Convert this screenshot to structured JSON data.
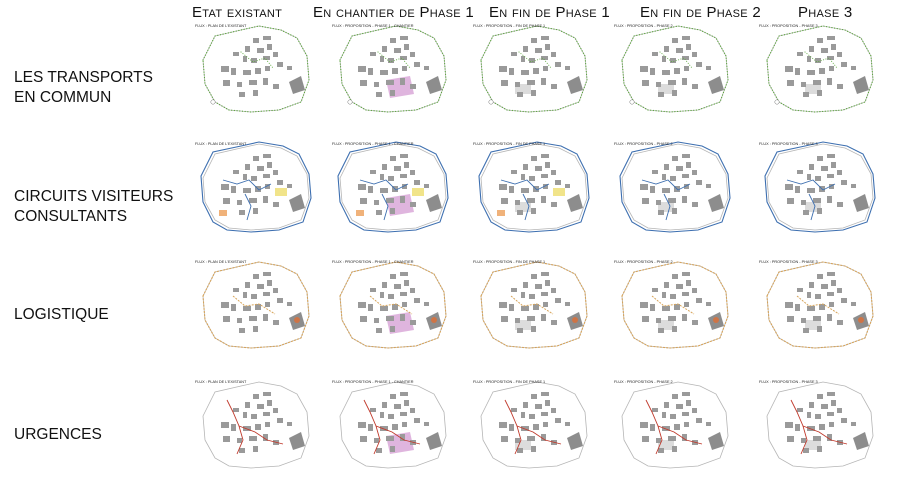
{
  "columns": [
    {
      "label": "Etat existant"
    },
    {
      "label": "En chantier de Phase 1"
    },
    {
      "label": "En fin de Phase 1"
    },
    {
      "label": "En fin de Phase 2"
    },
    {
      "label": "Phase 3"
    }
  ],
  "rows": [
    {
      "line1": "LES TRANSPORTS",
      "line2": "EN COMMUN",
      "color": "#5aa83a",
      "style": "dots"
    },
    {
      "line1": "CIRCUITS VISITEURS",
      "line2": "CONSULTANTS",
      "color": "#3d6fb0",
      "style": "solid"
    },
    {
      "line1": "LOGISTIQUE",
      "line2": "",
      "color": "#d7a45a",
      "style": "dashed"
    },
    {
      "line1": "URGENCES",
      "line2": "",
      "color": "#c0392b",
      "style": "thin"
    }
  ],
  "map_labels": [
    [
      "FLUX : PLAN DE L'EXISTANT",
      "FLUX : PROPOSITION - PHASE 1 - CHANTIER",
      "FLUX : PROPOSITION - FIN DE PHASE 1",
      "FLUX : PROPOSITION - PHASE 2",
      "FLUX : PROPOSITION - PHASE 3"
    ],
    [
      "FLUX : PLAN DE L'EXISTANT",
      "FLUX : PROPOSITION - PHASE 1 - CHANTIER",
      "FLUX : PROPOSITION - FIN DE PHASE 1",
      "FLUX : PROPOSITION - PHASE 2",
      "FLUX : PROPOSITION - PHASE 3"
    ],
    [
      "FLUX : PLAN DE L'EXISTANT",
      "FLUX : PROPOSITION - PHASE 1 - CHANTIER",
      "FLUX : PROPOSITION - FIN DE PHASE 1",
      "FLUX : PROPOSITION - PHASE 2",
      "FLUX : PROPOSITION - PHASE 3"
    ],
    [
      "FLUX : PLAN DE L'EXISTANT",
      "FLUX : PROPOSITION - PHASE 1 - CHANTIER",
      "FLUX : PROPOSITION - FIN DE PHASE 1",
      "FLUX : PROPOSITION - PHASE 2",
      "FLUX : PROPOSITION - PHASE 3"
    ]
  ],
  "colors": {
    "building": "#9a9a9a",
    "site_outline": "#b5b5b5",
    "chantier_zone": "#d9a8d8",
    "yellow_zone": "#f1e48a",
    "orange_zone": "#f0b27a"
  }
}
